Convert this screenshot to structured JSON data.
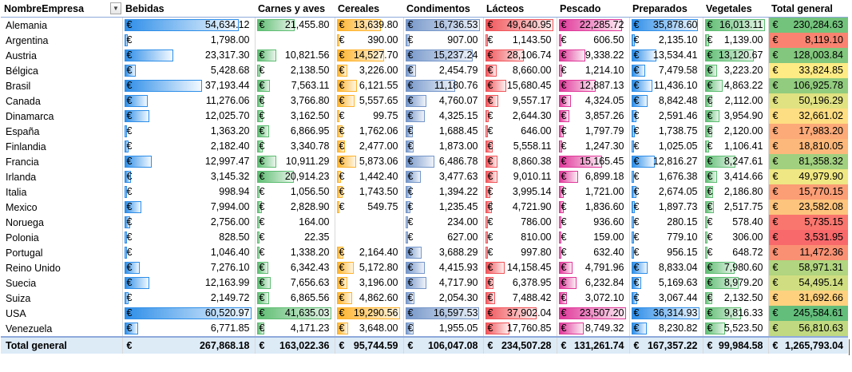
{
  "currency": "€",
  "header": {
    "row_label": "NombreEmpresa",
    "columns": [
      "Bebidas",
      "Carnes y aves",
      "Cereales",
      "Condimentos",
      "Lácteos",
      "Pescado",
      "Preparados",
      "Vegetales",
      "Total general"
    ]
  },
  "column_colors": [
    {
      "start": "#f2f9ff",
      "end": "#2e8ee8",
      "border": "#2e8ee8"
    },
    {
      "start": "#e8f5ea",
      "end": "#5ebd72",
      "border": "#5ebd72"
    },
    {
      "start": "#fff6e3",
      "end": "#ffb32b",
      "border": "#ffb32b"
    },
    {
      "start": "#eef3fa",
      "end": "#7596c9",
      "border": "#7596c9"
    },
    {
      "start": "#fdeeee",
      "end": "#f0555a",
      "border": "#f0555a"
    },
    {
      "start": "#fcecf4",
      "end": "#e0389a",
      "border": "#e0389a"
    },
    {
      "start": "#f2f9ff",
      "end": "#2e8ee8",
      "border": "#2e8ee8"
    },
    {
      "start": "#e8f5ea",
      "end": "#5ebd72",
      "border": "#5ebd72"
    }
  ],
  "column_max": [
    60520.97,
    41635.03,
    19290.56,
    16736.53,
    49640.95,
    23507.2,
    36314.93,
    16013.11
  ],
  "total_scale": {
    "min": 3531.95,
    "max": 245584.61,
    "low_color": "#f8696b",
    "mid_color": "#ffeb84",
    "high_color": "#63be7b"
  },
  "rows": [
    {
      "name": "Alemania",
      "values": [
        54634.12,
        21455.8,
        13639.8,
        16736.53,
        49640.95,
        22285.72,
        35878.6,
        16013.11
      ],
      "labels": [
        "54,634.12",
        "21,455.80",
        "13,639.80",
        "16,736.53",
        "49,640.95",
        "22,285.72",
        "35,878.60",
        "16,013.11"
      ],
      "total": 230284.63,
      "total_label": "230,284.63"
    },
    {
      "name": "Argentina",
      "values": [
        1798.0,
        0,
        390.0,
        907.0,
        1143.5,
        606.5,
        2135.1,
        1139.0
      ],
      "labels": [
        "1,798.00",
        "",
        "390.00",
        "907.00",
        "1,143.50",
        "606.50",
        "2,135.10",
        "1,139.00"
      ],
      "total": 8119.1,
      "total_label": "8,119.10"
    },
    {
      "name": "Austria",
      "values": [
        23317.3,
        10821.56,
        14527.7,
        15237.24,
        28106.74,
        9338.22,
        13534.41,
        13120.67
      ],
      "labels": [
        "23,317.30",
        "10,821.56",
        "14,527.70",
        "15,237.24",
        "28,106.74",
        "9,338.22",
        "13,534.41",
        "13,120.67"
      ],
      "total": 128003.84,
      "total_label": "128,003.84"
    },
    {
      "name": "Bélgica",
      "values": [
        5428.68,
        2138.5,
        3226.0,
        2454.79,
        8660.0,
        1214.1,
        7479.58,
        3223.2
      ],
      "labels": [
        "5,428.68",
        "2,138.50",
        "3,226.00",
        "2,454.79",
        "8,660.00",
        "1,214.10",
        "7,479.58",
        "3,223.20"
      ],
      "total": 33824.85,
      "total_label": "33,824.85"
    },
    {
      "name": "Brasil",
      "values": [
        37193.44,
        7563.11,
        6121.55,
        11180.76,
        15680.45,
        12887.13,
        11436.1,
        4863.22
      ],
      "labels": [
        "37,193.44",
        "7,563.11",
        "6,121.55",
        "11,180.76",
        "15,680.45",
        "12,887.13",
        "11,436.10",
        "4,863.22"
      ],
      "total": 106925.78,
      "total_label": "106,925.78"
    },
    {
      "name": "Canada",
      "values": [
        11276.06,
        3766.8,
        5557.65,
        4760.07,
        9557.17,
        4324.05,
        8842.48,
        2112.0
      ],
      "labels": [
        "11,276.06",
        "3,766.80",
        "5,557.65",
        "4,760.07",
        "9,557.17",
        "4,324.05",
        "8,842.48",
        "2,112.00"
      ],
      "total": 50196.29,
      "total_label": "50,196.29"
    },
    {
      "name": "Dinamarca",
      "values": [
        12025.7,
        3162.5,
        99.75,
        4325.15,
        2644.3,
        3857.26,
        2591.46,
        3954.9
      ],
      "labels": [
        "12,025.70",
        "3,162.50",
        "99.75",
        "4,325.15",
        "2,644.30",
        "3,857.26",
        "2,591.46",
        "3,954.90"
      ],
      "total": 32661.02,
      "total_label": "32,661.02"
    },
    {
      "name": "España",
      "values": [
        1363.2,
        6866.95,
        1762.06,
        1688.45,
        646.0,
        1797.79,
        1738.75,
        2120.0
      ],
      "labels": [
        "1,363.20",
        "6,866.95",
        "1,762.06",
        "1,688.45",
        "646.00",
        "1,797.79",
        "1,738.75",
        "2,120.00"
      ],
      "total": 17983.2,
      "total_label": "17,983.20"
    },
    {
      "name": "Finlandia",
      "values": [
        2182.4,
        3340.78,
        2477.0,
        1873.0,
        5558.11,
        1247.3,
        1025.05,
        1106.41
      ],
      "labels": [
        "2,182.40",
        "3,340.78",
        "2,477.00",
        "1,873.00",
        "5,558.11",
        "1,247.30",
        "1,025.05",
        "1,106.41"
      ],
      "total": 18810.05,
      "total_label": "18,810.05"
    },
    {
      "name": "Francia",
      "values": [
        12997.47,
        10911.29,
        5873.06,
        6486.78,
        8860.38,
        15165.45,
        12816.27,
        8247.61
      ],
      "labels": [
        "12,997.47",
        "10,911.29",
        "5,873.06",
        "6,486.78",
        "8,860.38",
        "15,165.45",
        "12,816.27",
        "8,247.61"
      ],
      "total": 81358.32,
      "total_label": "81,358.32"
    },
    {
      "name": "Irlanda",
      "values": [
        3145.32,
        20914.23,
        1442.4,
        3477.63,
        9010.11,
        6899.18,
        1676.38,
        3414.66
      ],
      "labels": [
        "3,145.32",
        "20,914.23",
        "1,442.40",
        "3,477.63",
        "9,010.11",
        "6,899.18",
        "1,676.38",
        "3,414.66"
      ],
      "total": 49979.9,
      "total_label": "49,979.90"
    },
    {
      "name": "Italia",
      "values": [
        998.94,
        1056.5,
        1743.5,
        1394.22,
        3995.14,
        1721.0,
        2674.05,
        2186.8
      ],
      "labels": [
        "998.94",
        "1,056.50",
        "1,743.50",
        "1,394.22",
        "3,995.14",
        "1,721.00",
        "2,674.05",
        "2,186.80"
      ],
      "total": 15770.15,
      "total_label": "15,770.15"
    },
    {
      "name": "Mexico",
      "values": [
        7994.0,
        2828.9,
        549.75,
        1235.45,
        4721.9,
        1836.6,
        1897.73,
        2517.75
      ],
      "labels": [
        "7,994.00",
        "2,828.90",
        "549.75",
        "1,235.45",
        "4,721.90",
        "1,836.60",
        "1,897.73",
        "2,517.75"
      ],
      "total": 23582.08,
      "total_label": "23,582.08"
    },
    {
      "name": "Noruega",
      "values": [
        2756.0,
        164.0,
        0,
        234.0,
        786.0,
        936.6,
        280.15,
        578.4
      ],
      "labels": [
        "2,756.00",
        "164.00",
        "",
        "234.00",
        "786.00",
        "936.60",
        "280.15",
        "578.40"
      ],
      "total": 5735.15,
      "total_label": "5,735.15"
    },
    {
      "name": "Polonia",
      "values": [
        828.5,
        22.35,
        0,
        627.0,
        810.0,
        159.0,
        779.1,
        306.0
      ],
      "labels": [
        "828.50",
        "22.35",
        "",
        "627.00",
        "810.00",
        "159.00",
        "779.10",
        "306.00"
      ],
      "total": 3531.95,
      "total_label": "3,531.95"
    },
    {
      "name": "Portugal",
      "values": [
        1046.4,
        1338.2,
        2164.4,
        3688.29,
        997.8,
        632.4,
        956.15,
        648.72
      ],
      "labels": [
        "1,046.40",
        "1,338.20",
        "2,164.40",
        "3,688.29",
        "997.80",
        "632.40",
        "956.15",
        "648.72"
      ],
      "total": 11472.36,
      "total_label": "11,472.36"
    },
    {
      "name": "Reino Unido",
      "values": [
        7276.1,
        6342.43,
        5172.8,
        4415.93,
        14158.45,
        4791.96,
        8833.04,
        7980.6
      ],
      "labels": [
        "7,276.10",
        "6,342.43",
        "5,172.80",
        "4,415.93",
        "14,158.45",
        "4,791.96",
        "8,833.04",
        "7,980.60"
      ],
      "total": 58971.31,
      "total_label": "58,971.31"
    },
    {
      "name": "Suecia",
      "values": [
        12163.99,
        7656.63,
        3196.0,
        4717.9,
        6378.95,
        6232.84,
        5169.63,
        8979.2
      ],
      "labels": [
        "12,163.99",
        "7,656.63",
        "3,196.00",
        "4,717.90",
        "6,378.95",
        "6,232.84",
        "5,169.63",
        "8,979.20"
      ],
      "total": 54495.14,
      "total_label": "54,495.14"
    },
    {
      "name": "Suiza",
      "values": [
        2149.72,
        6865.56,
        4862.6,
        2054.3,
        7488.42,
        3072.1,
        3067.44,
        2132.5
      ],
      "labels": [
        "2,149.72",
        "6,865.56",
        "4,862.60",
        "2,054.30",
        "7,488.42",
        "3,072.10",
        "3,067.44",
        "2,132.50"
      ],
      "total": 31692.66,
      "total_label": "31,692.66"
    },
    {
      "name": "USA",
      "values": [
        60520.97,
        41635.03,
        19290.56,
        16597.53,
        37902.04,
        23507.2,
        36314.93,
        9816.33
      ],
      "labels": [
        "60,520.97",
        "41,635.03",
        "19,290.56",
        "16,597.53",
        "37,902.04",
        "23,507.20",
        "36,314.93",
        "9,816.33"
      ],
      "total": 245584.61,
      "total_label": "245,584.61"
    },
    {
      "name": "Venezuela",
      "values": [
        6771.85,
        4171.23,
        3648.0,
        1955.05,
        17760.85,
        8749.32,
        8230.82,
        5523.5
      ],
      "labels": [
        "6,771.85",
        "4,171.23",
        "3,648.00",
        "1,955.05",
        "17,760.85",
        "8,749.32",
        "8,230.82",
        "5,523.50"
      ],
      "total": 56810.63,
      "total_label": "56,810.63"
    }
  ],
  "grand_total": {
    "label": "Total general",
    "values": [
      "267,868.18",
      "163,022.36",
      "95,744.59",
      "106,047.08",
      "234,507.28",
      "131,261.74",
      "167,357.22",
      "99,984.58"
    ],
    "total": "1,265,793.04"
  }
}
